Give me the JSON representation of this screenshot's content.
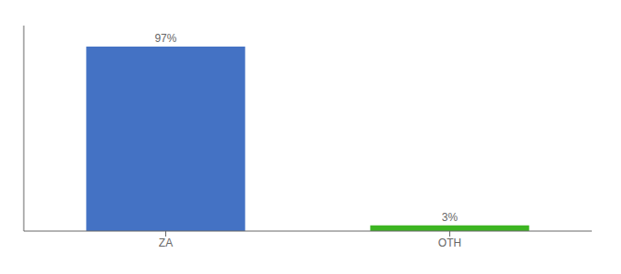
{
  "chart_data": {
    "type": "bar",
    "categories": [
      "ZA",
      "OTH"
    ],
    "values": [
      97,
      3
    ],
    "value_labels": [
      "97%",
      "3%"
    ],
    "data_labels": true,
    "colors": [
      "#4472c4",
      "#3cb521"
    ],
    "ylim": [
      0,
      108
    ],
    "tick_labels": "x"
  }
}
